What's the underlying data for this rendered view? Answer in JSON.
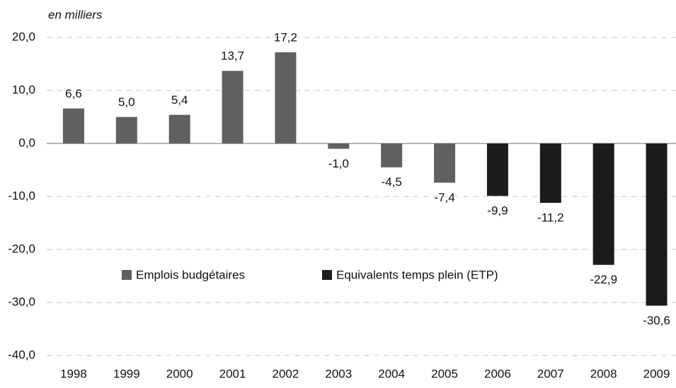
{
  "chart_data": {
    "type": "bar",
    "ylabel": "en milliers",
    "categories": [
      "1998",
      "1999",
      "2000",
      "2001",
      "2002",
      "2003",
      "2004",
      "2005",
      "2006",
      "2007",
      "2008",
      "2009"
    ],
    "series": [
      {
        "name": "Emplois budgétaires",
        "color": "#606060",
        "values": [
          6.6,
          5.0,
          5.4,
          13.7,
          17.2,
          -1.0,
          -4.5,
          -7.4,
          null,
          null,
          null,
          null
        ],
        "value_labels": [
          "6,6",
          "5,0",
          "5,4",
          "13,7",
          "17,2",
          "-1,0",
          "-4,5",
          "-7,4",
          null,
          null,
          null,
          null
        ]
      },
      {
        "name": "Equivalents temps plein (ETP)",
        "color": "#1c1c1c",
        "values": [
          null,
          null,
          null,
          null,
          null,
          null,
          null,
          null,
          -9.9,
          -11.2,
          -22.9,
          -30.6
        ],
        "value_labels": [
          null,
          null,
          null,
          null,
          null,
          null,
          null,
          null,
          "-9,9",
          "-11,2",
          "-22,9",
          "-30,6"
        ]
      }
    ],
    "ylim": [
      -40,
      20
    ],
    "yticks": [
      {
        "value": 20,
        "label": "20,0"
      },
      {
        "value": 10,
        "label": "10,0"
      },
      {
        "value": 0,
        "label": "0,0"
      },
      {
        "value": -10,
        "label": "-10,0"
      },
      {
        "value": -20,
        "label": "-20,0"
      },
      {
        "value": -30,
        "label": "-30,0"
      },
      {
        "value": -40,
        "label": "-40,0"
      }
    ],
    "grid": true
  }
}
